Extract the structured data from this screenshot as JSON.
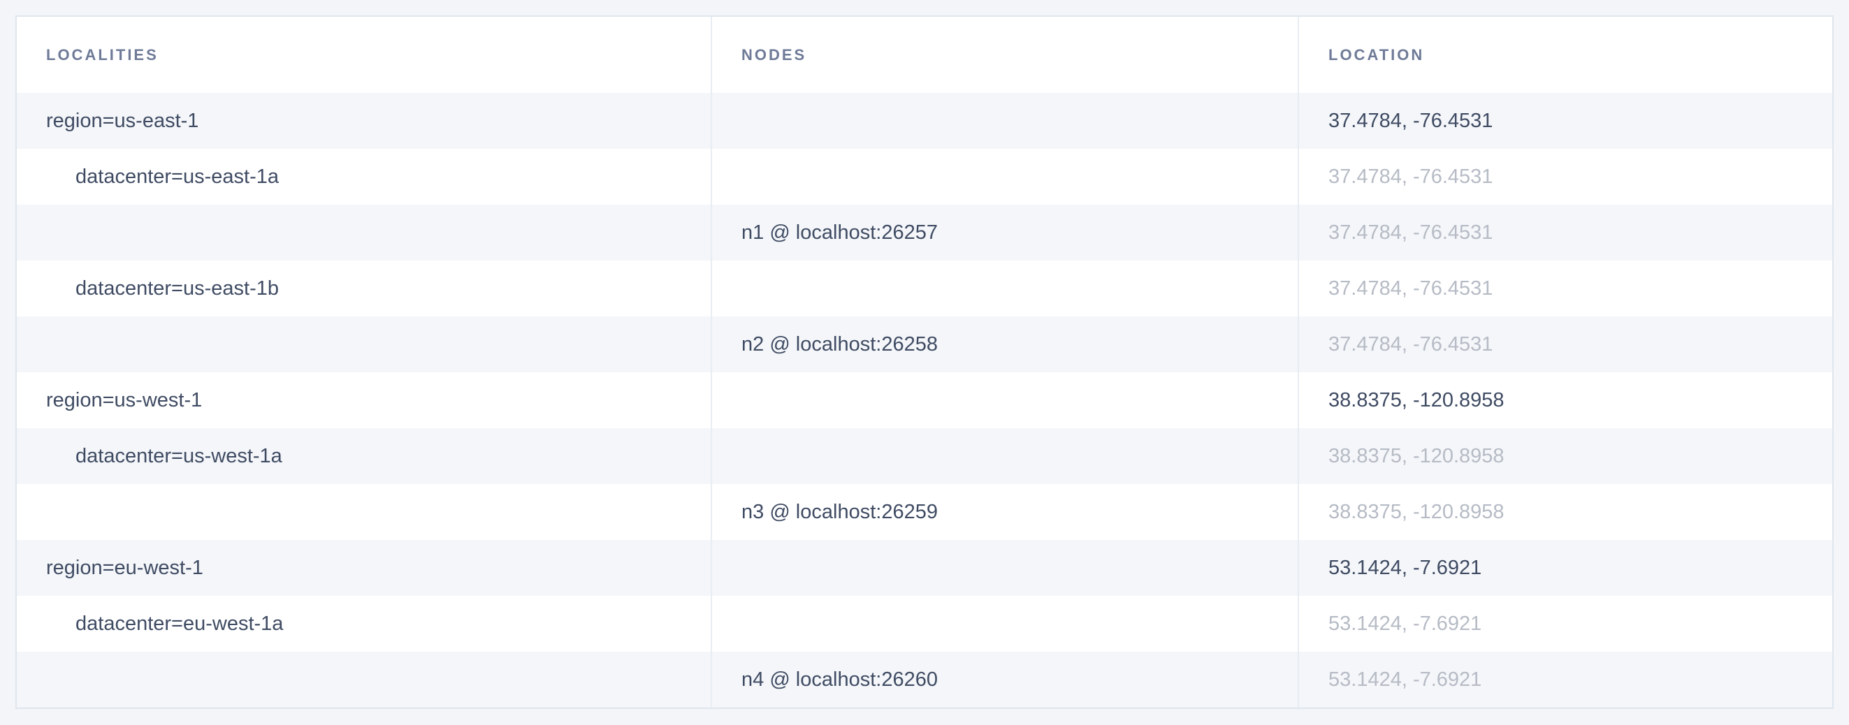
{
  "colors": {
    "page_background": "#f3f5f9",
    "row_alt_background": "#f4f6f9",
    "table_border": "#dfe6ee",
    "column_divider": "#e7edf3",
    "header_text": "#6e7a97",
    "cell_text_dark": "#3f4b63",
    "cell_text_muted": "#b6bbc5"
  },
  "table": {
    "columns": [
      {
        "label": "LOCALITIES"
      },
      {
        "label": "NODES"
      },
      {
        "label": "LOCATION"
      }
    ],
    "rows": [
      {
        "locality": "region=us-east-1",
        "node": "",
        "location": "37.4784, -76.4531"
      },
      {
        "locality": "datacenter=us-east-1a",
        "node": "",
        "location": "37.4784, -76.4531"
      },
      {
        "locality": "",
        "node": "n1 @ localhost:26257",
        "location": "37.4784, -76.4531"
      },
      {
        "locality": "datacenter=us-east-1b",
        "node": "",
        "location": "37.4784, -76.4531"
      },
      {
        "locality": "",
        "node": "n2 @ localhost:26258",
        "location": "37.4784, -76.4531"
      },
      {
        "locality": "region=us-west-1",
        "node": "",
        "location": "38.8375, -120.8958"
      },
      {
        "locality": "datacenter=us-west-1a",
        "node": "",
        "location": "38.8375, -120.8958"
      },
      {
        "locality": "",
        "node": "n3 @ localhost:26259",
        "location": "38.8375, -120.8958"
      },
      {
        "locality": "region=eu-west-1",
        "node": "",
        "location": "53.1424, -7.6921"
      },
      {
        "locality": "datacenter=eu-west-1a",
        "node": "",
        "location": "53.1424, -7.6921"
      },
      {
        "locality": "",
        "node": "n4 @ localhost:26260",
        "location": "53.1424, -7.6921"
      }
    ]
  }
}
